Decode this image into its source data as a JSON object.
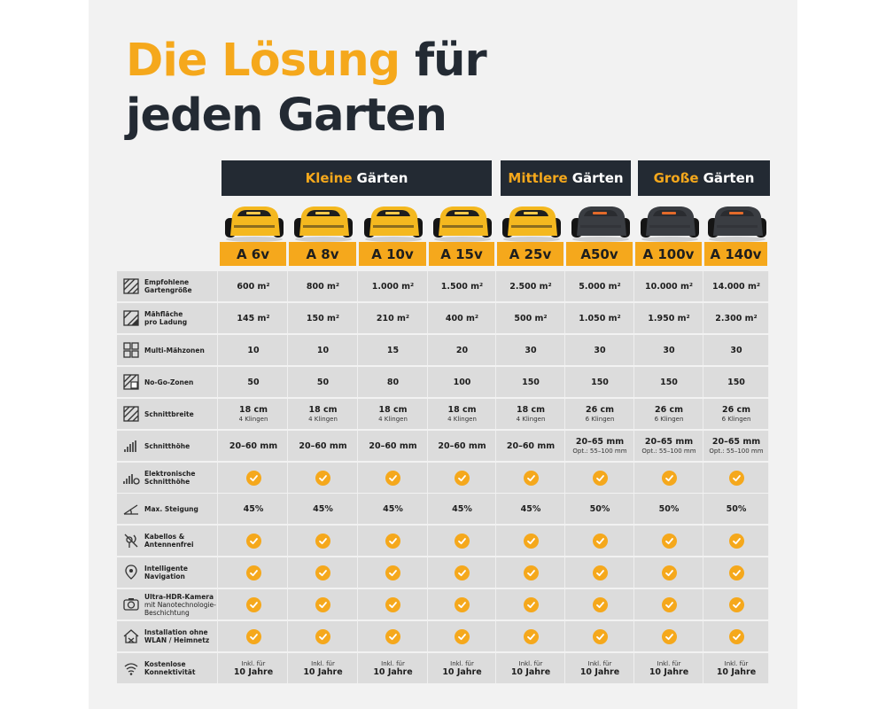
{
  "headline": {
    "line1_accent": "Die Lösung",
    "line1_rest": "für",
    "line2": "jeden Garten"
  },
  "colors": {
    "accent": "#f5a81c",
    "dark": "#232a33",
    "row_bg": "#dcdcdc",
    "panel_bg": "#f2f2f2"
  },
  "groups": [
    {
      "accent": "Kleine",
      "rest": "Gärten"
    },
    {
      "accent": "Mittlere",
      "rest": "Gärten"
    },
    {
      "accent": "Große",
      "rest": "Gärten"
    }
  ],
  "models": [
    "A 6v",
    "A 8v",
    "A 10v",
    "A 15v",
    "A 25v",
    "A50v",
    "A 100v",
    "A 140v"
  ],
  "robot_colors": [
    "yellow",
    "yellow",
    "yellow",
    "yellow",
    "yellow",
    "dark",
    "dark",
    "dark"
  ],
  "rows": [
    {
      "icon": "garden-area-icon",
      "label": "Empfohlene",
      "label2": "Gartengröße",
      "type": "text",
      "values": [
        "600 m²",
        "800 m²",
        "1.000 m²",
        "1.500 m²",
        "2.500 m²",
        "5.000 m²",
        "10.000 m²",
        "14.000 m²"
      ]
    },
    {
      "icon": "mowing-area-icon",
      "label": "Mähfläche",
      "label2": "pro Ladung",
      "type": "text",
      "values": [
        "145 m²",
        "150 m²",
        "210 m²",
        "400 m²",
        "500 m²",
        "1.050 m²",
        "1.950 m²",
        "2.300 m²"
      ]
    },
    {
      "icon": "zones-icon",
      "label": "Multi-Mähzonen",
      "label2": "",
      "type": "text",
      "values": [
        "10",
        "10",
        "15",
        "20",
        "30",
        "30",
        "30",
        "30"
      ]
    },
    {
      "icon": "no-go-zone-icon",
      "label": "No-Go-Zonen",
      "label2": "",
      "type": "text",
      "values": [
        "50",
        "50",
        "80",
        "100",
        "150",
        "150",
        "150",
        "150"
      ]
    },
    {
      "icon": "cutting-width-icon",
      "label": "Schnittbreite",
      "label2": "",
      "type": "text",
      "values": [
        "18 cm",
        "18 cm",
        "18 cm",
        "18 cm",
        "18 cm",
        "26 cm",
        "26 cm",
        "26 cm"
      ],
      "subs": [
        "4 Klingen",
        "4 Klingen",
        "4 Klingen",
        "4 Klingen",
        "4 Klingen",
        "6 Klingen",
        "6 Klingen",
        "6 Klingen"
      ]
    },
    {
      "icon": "cutting-height-icon",
      "label": "Schnitthöhe",
      "label2": "",
      "type": "text",
      "values": [
        "20–60 mm",
        "20–60 mm",
        "20–60 mm",
        "20–60 mm",
        "20–60 mm",
        "20–65 mm",
        "20–65 mm",
        "20–65 mm"
      ],
      "subs": [
        "",
        "",
        "",
        "",
        "",
        "Opt.: 55–100 mm",
        "Opt.: 55–100 mm",
        "Opt.: 55–100 mm"
      ]
    },
    {
      "icon": "electronic-height-icon",
      "label": "Elektronische",
      "label2": "Schnitthöhe",
      "type": "check"
    },
    {
      "icon": "slope-icon",
      "label": "Max. Steigung",
      "label2": "",
      "type": "text",
      "values": [
        "45%",
        "45%",
        "45%",
        "45%",
        "45%",
        "50%",
        "50%",
        "50%"
      ]
    },
    {
      "icon": "no-cable-icon",
      "label": "Kabellos &",
      "label2": "Antennenfrei",
      "type": "check"
    },
    {
      "icon": "navigation-icon",
      "label": "Intelligente",
      "label2": "Navigation",
      "type": "check"
    },
    {
      "icon": "camera-icon",
      "label": "Ultra-HDR-Kamera",
      "label2": "",
      "sub": "mit Nanotechnologie-",
      "sub2": "Beschichtung",
      "type": "check"
    },
    {
      "icon": "installation-icon",
      "label": "Installation ohne",
      "label2": "WLAN / Heimnetz",
      "type": "check"
    },
    {
      "icon": "connectivity-icon",
      "label": "Kostenlose",
      "label2": "Konnektivität",
      "type": "text2",
      "values": [
        "Inkl. für",
        "Inkl. für",
        "Inkl. für",
        "Inkl. für",
        "Inkl. für",
        "Inkl. für",
        "Inkl. für",
        "Inkl. für"
      ],
      "subs": [
        "10 Jahre",
        "10 Jahre",
        "10 Jahre",
        "10 Jahre",
        "10 Jahre",
        "10 Jahre",
        "10 Jahre",
        "10 Jahre"
      ]
    }
  ]
}
